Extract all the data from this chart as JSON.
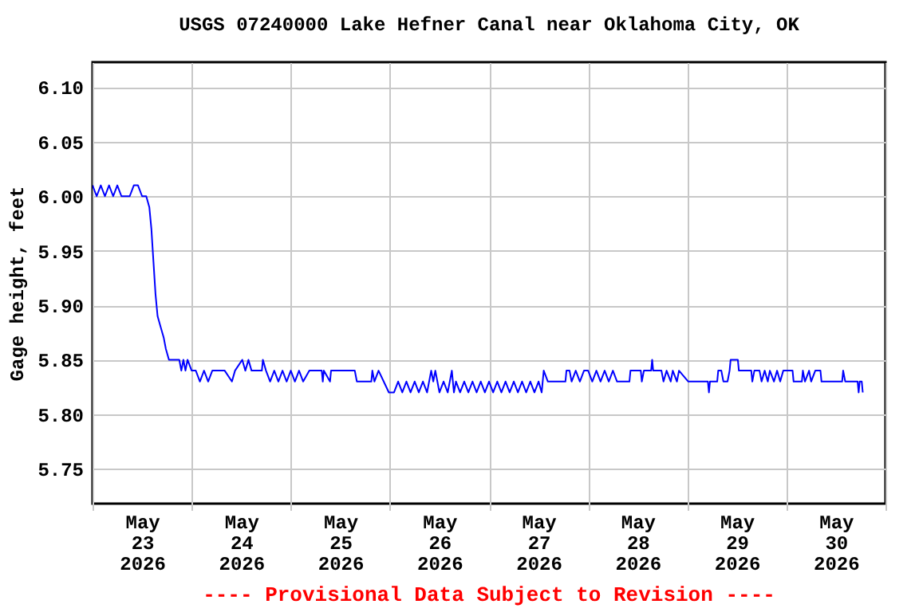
{
  "chart_data": {
    "type": "line",
    "title": "USGS 07240000 Lake Hefner Canal near Oklahoma City, OK",
    "ylabel": "Gage height, feet",
    "annotations": [
      "---- Provisional Data Subject to Revision ----"
    ],
    "grid": true,
    "line_style": "solid",
    "xlim": [
      "2026-05-23T00:00",
      "2026-05-31T00:00"
    ],
    "ylim": [
      5.718,
      6.123
    ],
    "xticks": [
      {
        "value": "2026-05-23T00:00",
        "label": null
      },
      {
        "value": "2026-05-23T12:00",
        "label": "May\n23\n2026"
      },
      {
        "value": "2026-05-24T00:00",
        "label": null
      },
      {
        "value": "2026-05-24T12:00",
        "label": "May\n24\n2026"
      },
      {
        "value": "2026-05-25T00:00",
        "label": null
      },
      {
        "value": "2026-05-25T12:00",
        "label": "May\n25\n2026"
      },
      {
        "value": "2026-05-26T00:00",
        "label": null
      },
      {
        "value": "2026-05-26T12:00",
        "label": "May\n26\n2026"
      },
      {
        "value": "2026-05-27T00:00",
        "label": null
      },
      {
        "value": "2026-05-27T12:00",
        "label": "May\n27\n2026"
      },
      {
        "value": "2026-05-28T00:00",
        "label": null
      },
      {
        "value": "2026-05-28T12:00",
        "label": "May\n28\n2026"
      },
      {
        "value": "2026-05-29T00:00",
        "label": null
      },
      {
        "value": "2026-05-29T12:00",
        "label": "May\n29\n2026"
      },
      {
        "value": "2026-05-30T00:00",
        "label": null
      },
      {
        "value": "2026-05-30T12:00",
        "label": "May\n30\n2026"
      },
      {
        "value": "2026-05-31T00:00",
        "label": null
      }
    ],
    "yticks": [
      {
        "value": 5.75,
        "label": "5.75"
      },
      {
        "value": 5.8,
        "label": "5.80"
      },
      {
        "value": 5.85,
        "label": "5.85"
      },
      {
        "value": 5.9,
        "label": "5.90"
      },
      {
        "value": 5.95,
        "label": "5.95"
      },
      {
        "value": 6.0,
        "label": "6.00"
      },
      {
        "value": 6.05,
        "label": "6.05"
      },
      {
        "value": 6.1,
        "label": "6.10"
      }
    ],
    "series": [
      {
        "color": "#0000ff",
        "x": [
          "2026-05-23T00:00",
          "2026-05-23T01:00",
          "2026-05-23T02:00",
          "2026-05-23T03:00",
          "2026-05-23T04:00",
          "2026-05-23T05:00",
          "2026-05-23T06:00",
          "2026-05-23T07:00",
          "2026-05-23T09:00",
          "2026-05-23T10:00",
          "2026-05-23T11:00",
          "2026-05-23T12:00",
          "2026-05-23T13:00",
          "2026-05-23T13:45",
          "2026-05-23T14:15",
          "2026-05-23T14:45",
          "2026-05-23T15:15",
          "2026-05-23T15:45",
          "2026-05-23T16:30",
          "2026-05-23T17:15",
          "2026-05-23T17:45",
          "2026-05-23T18:30",
          "2026-05-23T21:00",
          "2026-05-23T21:30",
          "2026-05-23T22:00",
          "2026-05-23T22:30",
          "2026-05-23T23:00",
          "2026-05-24T00:00",
          "2026-05-24T01:00",
          "2026-05-24T02:00",
          "2026-05-24T03:00",
          "2026-05-24T04:00",
          "2026-05-24T05:00",
          "2026-05-24T08:00",
          "2026-05-24T09:45",
          "2026-05-24T10:30",
          "2026-05-24T12:15",
          "2026-05-24T13:00",
          "2026-05-24T13:45",
          "2026-05-24T14:30",
          "2026-05-24T17:00",
          "2026-05-24T17:15",
          "2026-05-24T18:00",
          "2026-05-24T19:00",
          "2026-05-24T20:00",
          "2026-05-24T21:00",
          "2026-05-24T22:00",
          "2026-05-24T23:00",
          "2026-05-25T00:00",
          "2026-05-25T01:00",
          "2026-05-25T02:00",
          "2026-05-25T03:00",
          "2026-05-25T04:30",
          "2026-05-25T07:30",
          "2026-05-25T07:45",
          "2026-05-25T08:00",
          "2026-05-25T09:30",
          "2026-05-25T09:45",
          "2026-05-25T15:30",
          "2026-05-25T16:00",
          "2026-05-25T19:30",
          "2026-05-25T19:45",
          "2026-05-25T20:15",
          "2026-05-25T21:15",
          "2026-05-25T22:30",
          "2026-05-25T23:45",
          "2026-05-26T01:00",
          "2026-05-26T02:00",
          "2026-05-26T03:00",
          "2026-05-26T04:00",
          "2026-05-26T05:00",
          "2026-05-26T06:00",
          "2026-05-26T07:00",
          "2026-05-26T08:00",
          "2026-05-26T09:00",
          "2026-05-26T10:00",
          "2026-05-26T10:30",
          "2026-05-26T11:00",
          "2026-05-26T12:00",
          "2026-05-26T13:00",
          "2026-05-26T14:00",
          "2026-05-26T15:00",
          "2026-05-26T15:30",
          "2026-05-26T16:00",
          "2026-05-26T17:00",
          "2026-05-26T18:00",
          "2026-05-26T19:00",
          "2026-05-26T20:00",
          "2026-05-26T21:00",
          "2026-05-26T22:00",
          "2026-05-26T23:00",
          "2026-05-27T00:00",
          "2026-05-27T01:00",
          "2026-05-27T02:00",
          "2026-05-27T03:00",
          "2026-05-27T04:00",
          "2026-05-27T05:00",
          "2026-05-27T06:00",
          "2026-05-27T07:00",
          "2026-05-27T08:00",
          "2026-05-27T09:00",
          "2026-05-27T10:00",
          "2026-05-27T11:00",
          "2026-05-27T12:00",
          "2026-05-27T12:45",
          "2026-05-27T13:15",
          "2026-05-27T14:15",
          "2026-05-27T18:30",
          "2026-05-27T18:45",
          "2026-05-27T19:30",
          "2026-05-27T20:00",
          "2026-05-27T21:00",
          "2026-05-27T22:00",
          "2026-05-27T23:00",
          "2026-05-28T00:00",
          "2026-05-28T01:00",
          "2026-05-28T02:00",
          "2026-05-28T03:00",
          "2026-05-28T04:00",
          "2026-05-28T05:00",
          "2026-05-28T06:00",
          "2026-05-28T07:00",
          "2026-05-28T10:00",
          "2026-05-28T10:15",
          "2026-05-28T12:45",
          "2026-05-28T13:00",
          "2026-05-28T13:30",
          "2026-05-28T15:15",
          "2026-05-28T15:30",
          "2026-05-28T15:45",
          "2026-05-28T17:45",
          "2026-05-28T18:15",
          "2026-05-28T19:00",
          "2026-05-28T20:00",
          "2026-05-28T20:30",
          "2026-05-28T21:30",
          "2026-05-28T22:00",
          "2026-05-29T00:15",
          "2026-05-29T05:00",
          "2026-05-29T05:15",
          "2026-05-29T05:30",
          "2026-05-29T07:15",
          "2026-05-29T07:30",
          "2026-05-29T08:15",
          "2026-05-29T08:45",
          "2026-05-29T09:45",
          "2026-05-29T10:15",
          "2026-05-29T10:30",
          "2026-05-29T12:15",
          "2026-05-29T12:30",
          "2026-05-29T15:30",
          "2026-05-29T15:45",
          "2026-05-29T16:15",
          "2026-05-29T17:30",
          "2026-05-29T18:00",
          "2026-05-29T18:45",
          "2026-05-29T19:30",
          "2026-05-29T20:00",
          "2026-05-29T21:00",
          "2026-05-29T21:45",
          "2026-05-29T22:30",
          "2026-05-29T23:15",
          "2026-05-30T00:00",
          "2026-05-30T01:30",
          "2026-05-30T01:45",
          "2026-05-30T03:45",
          "2026-05-30T04:00",
          "2026-05-30T04:30",
          "2026-05-30T05:30",
          "2026-05-30T06:00",
          "2026-05-30T07:00",
          "2026-05-30T08:15",
          "2026-05-30T08:30",
          "2026-05-30T13:30",
          "2026-05-30T13:45",
          "2026-05-30T14:15",
          "2026-05-30T17:15",
          "2026-05-30T17:30",
          "2026-05-30T17:45",
          "2026-05-30T18:15",
          "2026-05-30T18:30"
        ],
        "values": [
          6.01,
          6.0,
          6.01,
          6.0,
          6.01,
          6.0,
          6.01,
          6.0,
          6.0,
          6.01,
          6.01,
          6.0,
          6.0,
          5.99,
          5.97,
          5.94,
          5.91,
          5.89,
          5.88,
          5.87,
          5.86,
          5.85,
          5.85,
          5.84,
          5.85,
          5.84,
          5.85,
          5.84,
          5.84,
          5.83,
          5.84,
          5.83,
          5.84,
          5.84,
          5.83,
          5.84,
          5.85,
          5.84,
          5.85,
          5.84,
          5.84,
          5.85,
          5.84,
          5.83,
          5.84,
          5.83,
          5.84,
          5.83,
          5.84,
          5.83,
          5.84,
          5.83,
          5.84,
          5.84,
          5.83,
          5.84,
          5.83,
          5.84,
          5.84,
          5.83,
          5.83,
          5.84,
          5.83,
          5.84,
          5.83,
          5.82,
          5.82,
          5.83,
          5.82,
          5.83,
          5.82,
          5.83,
          5.82,
          5.83,
          5.82,
          5.84,
          5.83,
          5.84,
          5.82,
          5.83,
          5.82,
          5.84,
          5.82,
          5.83,
          5.82,
          5.83,
          5.82,
          5.83,
          5.82,
          5.83,
          5.82,
          5.83,
          5.82,
          5.83,
          5.82,
          5.83,
          5.82,
          5.83,
          5.82,
          5.83,
          5.82,
          5.83,
          5.82,
          5.83,
          5.82,
          5.84,
          5.83,
          5.83,
          5.84,
          5.84,
          5.83,
          5.84,
          5.83,
          5.84,
          5.84,
          5.83,
          5.84,
          5.83,
          5.84,
          5.83,
          5.84,
          5.83,
          5.83,
          5.84,
          5.84,
          5.83,
          5.84,
          5.84,
          5.85,
          5.84,
          5.84,
          5.83,
          5.84,
          5.83,
          5.84,
          5.83,
          5.84,
          5.83,
          5.83,
          5.82,
          5.83,
          5.83,
          5.84,
          5.84,
          5.83,
          5.83,
          5.84,
          5.85,
          5.85,
          5.84,
          5.84,
          5.83,
          5.84,
          5.84,
          5.83,
          5.84,
          5.83,
          5.84,
          5.83,
          5.84,
          5.83,
          5.84,
          5.84,
          5.84,
          5.83,
          5.83,
          5.84,
          5.83,
          5.84,
          5.83,
          5.84,
          5.84,
          5.83,
          5.83,
          5.84,
          5.83,
          5.83,
          5.82,
          5.83,
          5.83,
          5.82
        ]
      }
    ]
  }
}
